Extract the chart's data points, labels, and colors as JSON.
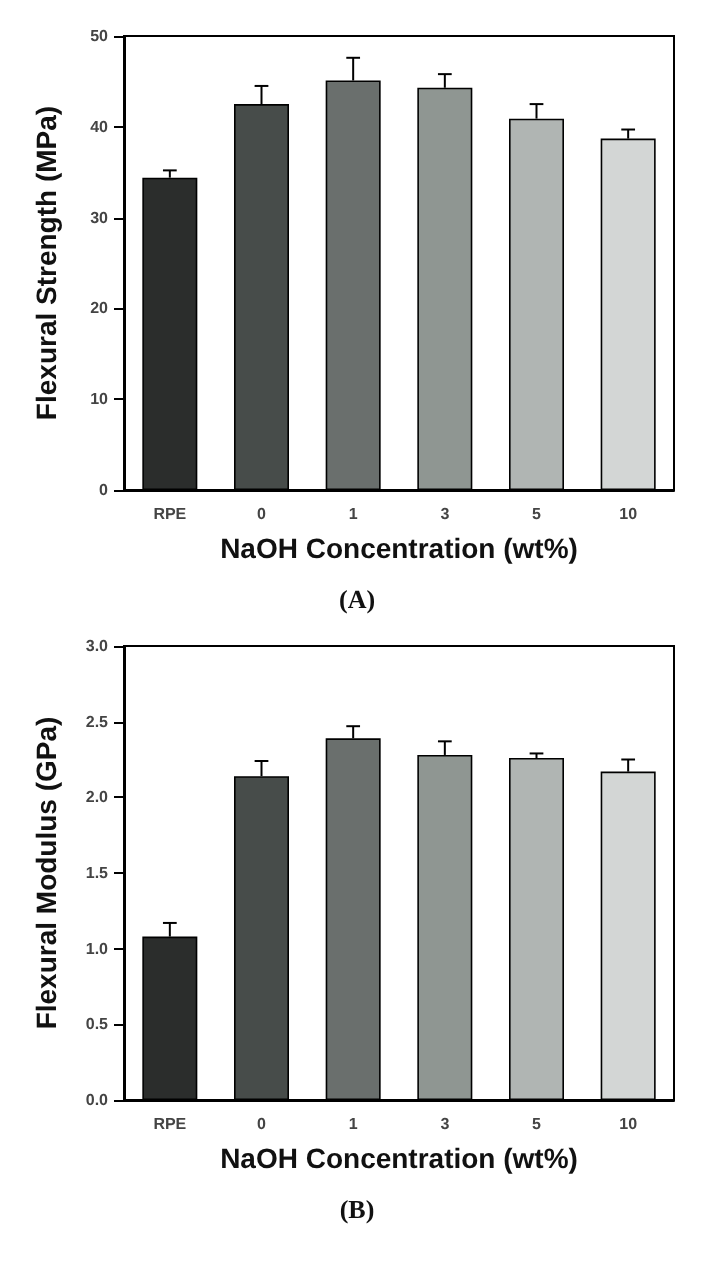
{
  "chart_data": [
    {
      "type": "bar",
      "title": "(A)",
      "xlabel": "NaOH Concentration (wt%)",
      "ylabel": "Flexural Strength (MPa)",
      "categories": [
        "RPE",
        "0",
        "1",
        "3",
        "5",
        "10"
      ],
      "values": [
        34.4,
        42.5,
        45.1,
        44.3,
        40.9,
        38.7
      ],
      "errors": [
        [
          34.4,
          35.2
        ],
        [
          42.5,
          44.5
        ],
        [
          45.1,
          47.6
        ],
        [
          44.3,
          45.8
        ],
        [
          40.9,
          42.5
        ],
        [
          38.7,
          39.7
        ]
      ],
      "colors": [
        "#2b2d2c",
        "#474c4a",
        "#6a6f6d",
        "#8f9692",
        "#b0b5b3",
        "#d3d6d5"
      ],
      "ylim": [
        0,
        50
      ],
      "yticks": [
        0,
        10,
        20,
        30,
        40,
        50
      ]
    },
    {
      "type": "bar",
      "title": "(B)",
      "xlabel": "NaOH Concentration (wt%)",
      "ylabel": "Flexural Modulus (GPa)",
      "categories": [
        "RPE",
        "0",
        "1",
        "3",
        "5",
        "10"
      ],
      "values": [
        1.08,
        2.14,
        2.39,
        2.28,
        2.26,
        2.17
      ],
      "errors": [
        [
          1.08,
          1.17
        ],
        [
          2.14,
          2.24
        ],
        [
          2.39,
          2.47
        ],
        [
          2.28,
          2.37
        ],
        [
          2.26,
          2.29
        ],
        [
          2.17,
          2.25
        ]
      ],
      "colors": [
        "#2b2d2c",
        "#474c4a",
        "#6a6f6d",
        "#8f9692",
        "#b0b5b3",
        "#d3d6d5"
      ],
      "ylim": [
        0,
        3.0
      ],
      "yticks": [
        {
          "value": 0,
          "label": "0.0"
        },
        0.5,
        {
          "value": 1,
          "label": "1.0"
        },
        1.5,
        {
          "value": 2,
          "label": "2.0"
        },
        2.5,
        {
          "value": 3,
          "label": "3.0"
        }
      ]
    }
  ]
}
